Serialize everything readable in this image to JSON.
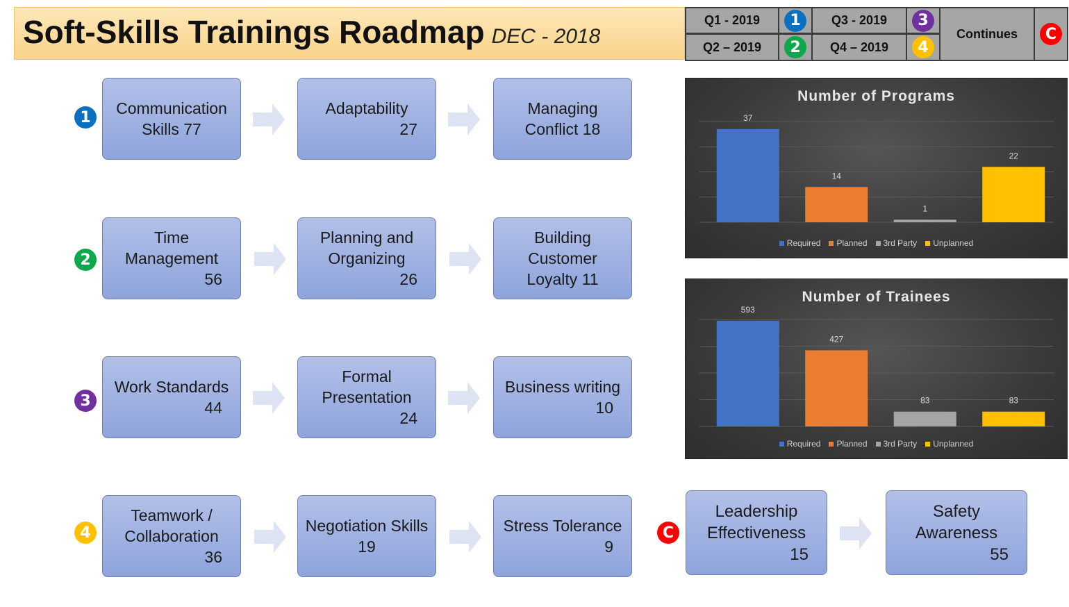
{
  "header": {
    "title": "Soft-Skills Trainings Roadmap",
    "subtitle": "DEC - 2018"
  },
  "legend": {
    "q1": "Q1 - 2019",
    "q2": "Q2 – 2019",
    "q3": "Q3 - 2019",
    "q4": "Q4 – 2019",
    "continues": "Continues",
    "badge_1": "1",
    "badge_2": "2",
    "badge_3": "3",
    "badge_4": "4",
    "badge_c": "C"
  },
  "colors": {
    "q1": "#0a70c0",
    "q2": "#0ca84b",
    "q3": "#7030a0",
    "q4": "#ffc000",
    "continues": "#ff0000",
    "required": "#4472c4",
    "planned": "#ed7d31",
    "third_party": "#a5a5a5",
    "unplanned": "#ffc000"
  },
  "rows": [
    {
      "badge": "1",
      "items": [
        {
          "name": "Communication Skills",
          "count": "77"
        },
        {
          "name": "Adaptability",
          "count": "27"
        },
        {
          "name": "Managing Conflict",
          "count": "18"
        }
      ]
    },
    {
      "badge": "2",
      "items": [
        {
          "name": "Time Management",
          "count": "56"
        },
        {
          "name": "Planning and Organizing",
          "count": "26"
        },
        {
          "name": "Building Customer Loyalty",
          "count": "11"
        }
      ]
    },
    {
      "badge": "3",
      "items": [
        {
          "name": "Work Standards",
          "count": "44"
        },
        {
          "name": "Formal Presentation",
          "count": "24"
        },
        {
          "name": "Business writing",
          "count": "10"
        }
      ]
    },
    {
      "badge": "4",
      "items": [
        {
          "name": "Teamwork / Collaboration",
          "count": "36"
        },
        {
          "name": "Negotiation Skills",
          "count": "19"
        },
        {
          "name": "Stress Tolerance",
          "count": "9"
        }
      ]
    }
  ],
  "continues_row": {
    "badge": "C",
    "items": [
      {
        "name": "Leadership Effectiveness",
        "count": "15"
      },
      {
        "name": "Safety Awareness",
        "count": "55"
      }
    ]
  },
  "chart_data": [
    {
      "type": "bar",
      "title": "Number of Programs",
      "categories": [
        "Required",
        "Planned",
        "3rd Party",
        "Unplanned"
      ],
      "values": [
        37,
        14,
        1,
        22
      ],
      "ylim": [
        0,
        40
      ],
      "grid": true,
      "legend": "bottom"
    },
    {
      "type": "bar",
      "title": "Number of Trainees",
      "categories": [
        "Required",
        "Planned",
        "3rd Party",
        "Unplanned"
      ],
      "values": [
        593,
        427,
        83,
        83
      ],
      "ylim": [
        0,
        600
      ],
      "grid": true,
      "legend": "bottom"
    }
  ]
}
